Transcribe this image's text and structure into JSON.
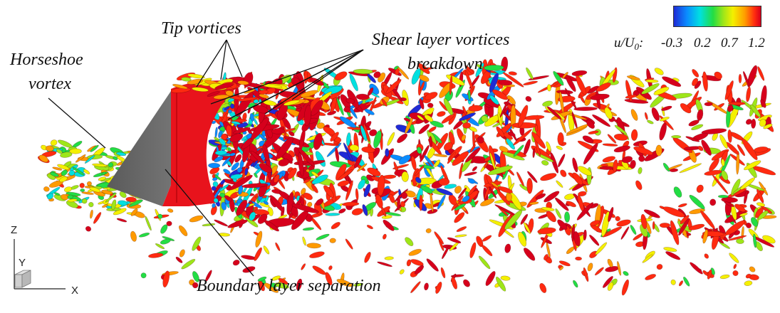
{
  "labels": {
    "tip_vortices": "Tip vortices",
    "shear_line1": "Shear layer vortices",
    "shear_line2": "breakdown",
    "horseshoe_line1": "Horseshoe",
    "horseshoe_line2": "vortex",
    "boundary_layer": "Boundary layer separation"
  },
  "colorbar": {
    "variable": "u/U",
    "subscript": "0",
    "suffix": ":",
    "ticks": [
      "-0.3",
      "0.2",
      "0.7",
      "1.2"
    ],
    "gradient": [
      "#1f2bd6",
      "#0a8cff",
      "#00e0e0",
      "#22dd44",
      "#9ee619",
      "#f4f000",
      "#ff9a00",
      "#ff2a10",
      "#d6001c"
    ]
  },
  "axes": {
    "z": "Z",
    "y": "Y",
    "x": "X"
  },
  "colors": {
    "body_gray": "#666666",
    "shear_red": "#e8131c"
  }
}
